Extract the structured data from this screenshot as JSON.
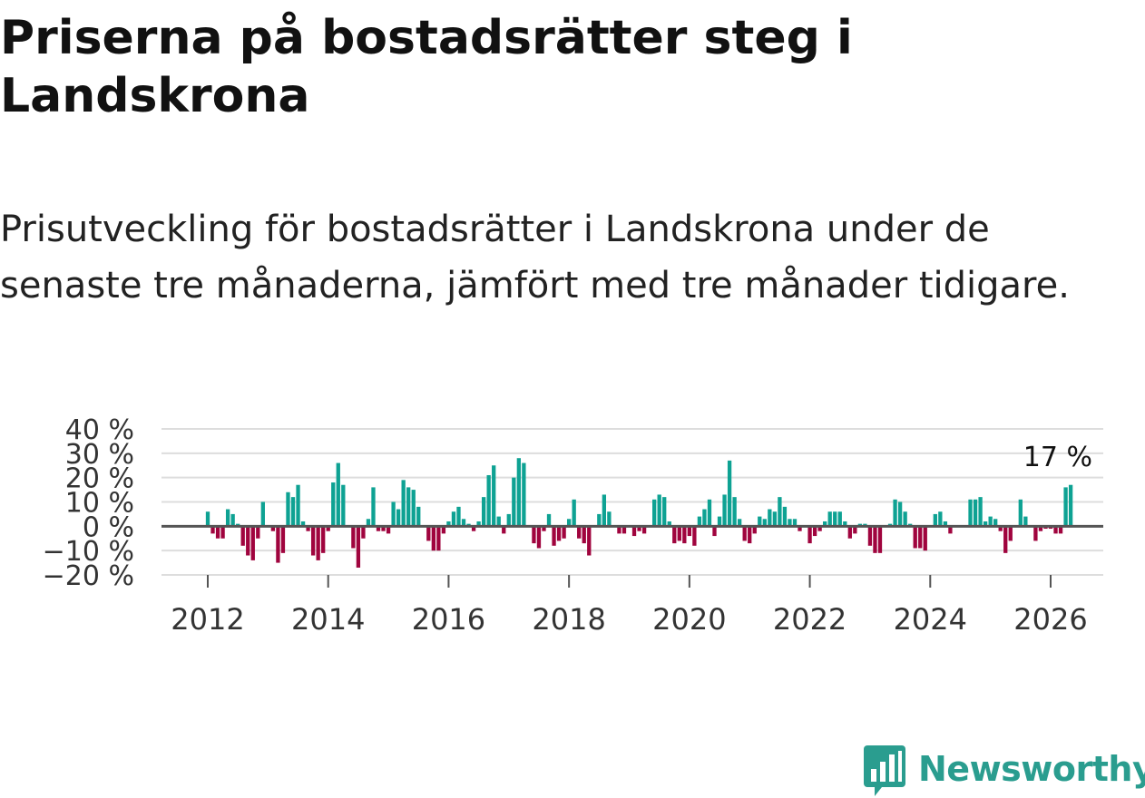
{
  "title": "Priserna på bostadsrätter steg i Landskrona",
  "subtitle": "Prisutveckling för bostadsrätter i Landskrona under de senaste tre månaderna, jämfört med tre månader tidigare.",
  "brand": {
    "name": "Newsworthy",
    "color": "#2a9d8f"
  },
  "colors": {
    "positive": "#0ea293",
    "negative": "#a0043e",
    "grid": "#dddddd",
    "zero": "#555555",
    "text": "#333333"
  },
  "chart_data": {
    "type": "bar",
    "title": "Priserna på bostadsrätter steg i Landskrona",
    "xlabel": "",
    "ylabel": "",
    "ylim": [
      -20,
      40
    ],
    "yticks": [
      40,
      30,
      20,
      10,
      0,
      -10,
      -20
    ],
    "ytick_labels": [
      "40 %",
      "30 %",
      "20 %",
      "10 %",
      "0 %",
      "−10 %",
      "−20 %"
    ],
    "xticks": [
      2012,
      2014,
      2016,
      2018,
      2020,
      2022,
      2024,
      2026
    ],
    "xtick_labels": [
      "2012",
      "2014",
      "2016",
      "2018",
      "2020",
      "2022",
      "2024",
      "2026"
    ],
    "x_start": {
      "year": 2012,
      "month": 1
    },
    "last_value_label": "17 %",
    "grid": true,
    "values": [
      6,
      -3,
      -5,
      -5,
      7,
      5,
      1,
      -8,
      -12,
      -14,
      -5,
      10,
      0,
      -2,
      -15,
      -11,
      14,
      12,
      17,
      2,
      -2,
      -12,
      -14,
      -11,
      -2,
      18,
      26,
      17,
      0,
      -9,
      -17,
      -5,
      3,
      16,
      -2,
      -2,
      -3,
      10,
      7,
      19,
      16,
      15,
      8,
      0,
      -6,
      -10,
      -10,
      -3,
      2,
      6,
      8,
      3,
      1,
      -2,
      2,
      12,
      21,
      25,
      4,
      -3,
      5,
      20,
      28,
      26,
      0,
      -7,
      -9,
      -2,
      5,
      -8,
      -6,
      -5,
      3,
      11,
      -5,
      -7,
      -12,
      0,
      5,
      13,
      6,
      0,
      -3,
      -3,
      0,
      -4,
      -2,
      -3,
      0,
      11,
      13,
      12,
      2,
      -7,
      -6,
      -7,
      -4,
      -8,
      4,
      7,
      11,
      -4,
      4,
      13,
      27,
      12,
      3,
      -6,
      -7,
      -3,
      4,
      3,
      7,
      6,
      12,
      8,
      3,
      3,
      -2,
      0,
      -7,
      -4,
      -2,
      2,
      6,
      6,
      6,
      2,
      -5,
      -3,
      1,
      1,
      -8,
      -11,
      -11,
      0,
      1,
      11,
      10,
      6,
      1,
      -9,
      -9,
      -10,
      0,
      5,
      6,
      2,
      -3,
      0,
      0,
      0,
      11,
      11,
      12,
      2,
      4,
      3,
      -2,
      -11,
      -6,
      0,
      11,
      4,
      0,
      -6,
      -2,
      -1,
      -1,
      -3,
      -3,
      16,
      17
    ]
  }
}
